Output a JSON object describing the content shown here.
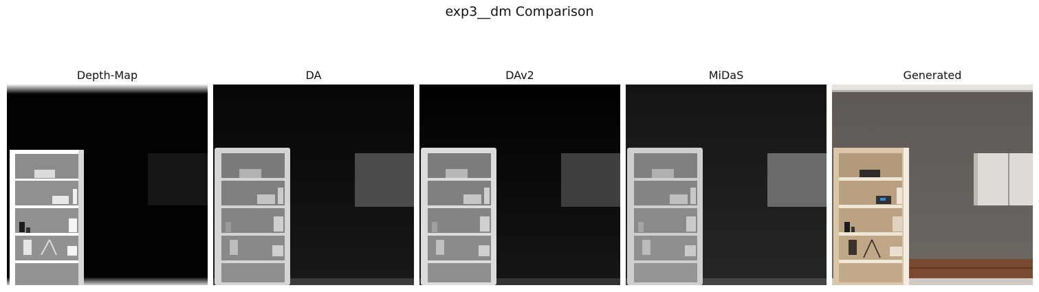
{
  "figure": {
    "title": "exp3__dm Comparison"
  },
  "panels": [
    {
      "title": "Depth-Map",
      "kind": "depth-map-input"
    },
    {
      "title": "DA",
      "kind": "depth-estimate"
    },
    {
      "title": "DAv2",
      "kind": "depth-estimate"
    },
    {
      "title": "MiDaS",
      "kind": "depth-estimate"
    },
    {
      "title": "Generated",
      "kind": "rendered-room"
    }
  ]
}
